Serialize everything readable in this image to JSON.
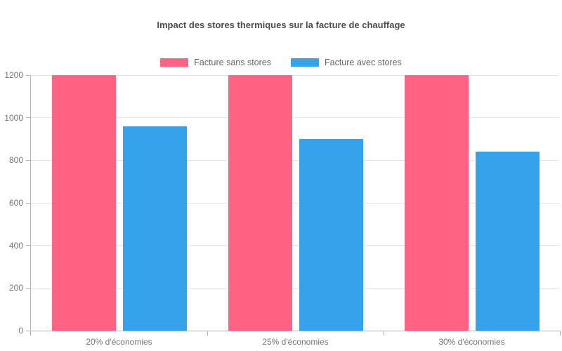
{
  "title": "Impact des stores thermiques sur la facture de chauffage",
  "legend": {
    "items": [
      {
        "label": "Facture sans stores",
        "color": "#FF6384"
      },
      {
        "label": "Facture avec stores",
        "color": "#36A2EB"
      }
    ]
  },
  "chart_data": {
    "type": "bar",
    "title": "Impact des stores thermiques sur la facture de chauffage",
    "categories": [
      "20% d'économies",
      "25% d'économies",
      "30% d'économies"
    ],
    "series": [
      {
        "name": "Facture sans stores",
        "color": "#FF6384",
        "values": [
          1200,
          1200,
          1200
        ]
      },
      {
        "name": "Facture avec stores",
        "color": "#36A2EB",
        "values": [
          960,
          900,
          840
        ]
      }
    ],
    "xlabel": "",
    "ylabel": "",
    "ylim": [
      0,
      1200
    ],
    "ytick_step": 200,
    "yticks": [
      0,
      200,
      400,
      600,
      800,
      1000,
      1200
    ],
    "grid": true,
    "legend_position": "top",
    "colors": {
      "grid": "#e6e6e6",
      "axis": "#b4b4b4",
      "tick_text": "#757575",
      "title_text": "#4e4e4e"
    }
  }
}
